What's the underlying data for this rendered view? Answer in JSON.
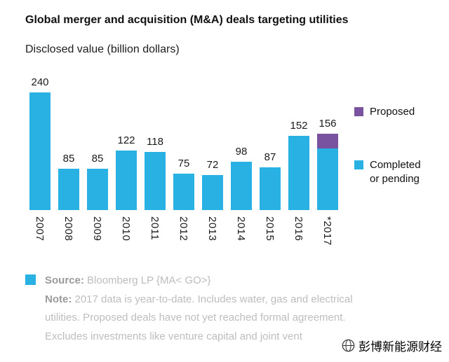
{
  "title": "Global merger and acquisition (M&A) deals targeting utilities",
  "subtitle": "Disclosed value (billion dollars)",
  "chart_data": {
    "type": "bar",
    "stacked": true,
    "title": "Global merger and acquisition (M&A) deals targeting utilities",
    "ylabel": "Disclosed value (billion dollars)",
    "categories": [
      "2007",
      "2008",
      "2009",
      "2010",
      "2011",
      "2012",
      "2013",
      "2014",
      "2015",
      "2016",
      "*2017"
    ],
    "series": [
      {
        "name": "Completed or pending",
        "color": "#2AB1E4",
        "values": [
          240,
          85,
          85,
          122,
          118,
          75,
          72,
          98,
          87,
          152,
          126
        ]
      },
      {
        "name": "Proposed",
        "color": "#7A53A0",
        "values": [
          0,
          0,
          0,
          0,
          0,
          0,
          0,
          0,
          0,
          0,
          30
        ]
      }
    ],
    "totals": [
      240,
      85,
      85,
      122,
      118,
      75,
      72,
      98,
      87,
      152,
      156
    ],
    "ylim": [
      0,
      240
    ],
    "grid": false,
    "legend_position": "right",
    "x_tick_rotation": 90
  },
  "legend": {
    "proposed": {
      "label": "Proposed",
      "color": "#7A53A0"
    },
    "completed": {
      "label": "Completed or pending",
      "color": "#2AB1E4"
    }
  },
  "footer": {
    "swatch_color": "#2AB1E4",
    "source_label": "Source:",
    "source_text": " Bloomberg LP {MA< GO>}",
    "note_label": "Note:",
    "note_line1": " 2017 data is year-to-date. Includes water, gas and electrical",
    "note_line2": "utilities. Proposed deals have not yet reached formal agreement.",
    "note_line3": "Excludes investments like venture capital and joint vent",
    "footnote_marker": "*"
  },
  "watermark": {
    "text": "彭博新能源财经"
  }
}
